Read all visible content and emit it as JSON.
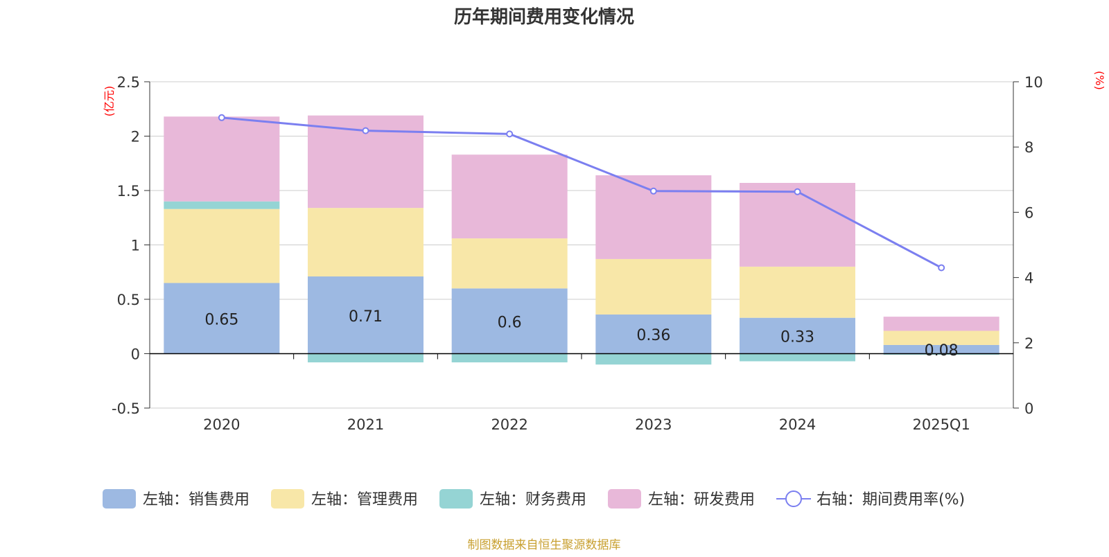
{
  "chart_data": {
    "type": "bar",
    "title": "历年期间费用变化情况",
    "left_unit": "(亿元)",
    "right_unit": "(%)",
    "categories": [
      "2020",
      "2021",
      "2022",
      "2023",
      "2024",
      "2025Q1"
    ],
    "y_left": {
      "min": -0.5,
      "max": 2.5,
      "ticks": [
        "-0.5",
        "0",
        "0.5",
        "1",
        "1.5",
        "2",
        "2.5"
      ]
    },
    "y_right": {
      "min": 0,
      "max": 10,
      "ticks": [
        "0",
        "2",
        "4",
        "6",
        "8",
        "10"
      ]
    },
    "grid": true,
    "series": [
      {
        "name": "左轴：销售费用",
        "type": "bar",
        "axis": "left",
        "color": "#9db9e2",
        "values": [
          0.65,
          0.71,
          0.6,
          0.36,
          0.33,
          0.08
        ],
        "labels": [
          "0.65",
          "0.71",
          "0.6",
          "0.36",
          "0.33",
          "0.08"
        ]
      },
      {
        "name": "左轴：管理费用",
        "type": "bar",
        "axis": "left",
        "color": "#f8e7a8",
        "values": [
          0.68,
          0.63,
          0.46,
          0.51,
          0.47,
          0.13
        ]
      },
      {
        "name": "左轴：财务费用",
        "type": "bar",
        "axis": "left",
        "color": "#95d4d4",
        "values": [
          0.07,
          -0.08,
          -0.08,
          -0.1,
          -0.07,
          -0.01
        ]
      },
      {
        "name": "左轴：研发费用",
        "type": "bar",
        "axis": "left",
        "color": "#e8b8d9",
        "values": [
          0.78,
          0.85,
          0.77,
          0.77,
          0.77,
          0.13
        ]
      },
      {
        "name": "右轴：期间费用率(%)",
        "type": "line",
        "axis": "right",
        "color": "#7b7ff0",
        "values": [
          8.9,
          8.5,
          8.4,
          6.65,
          6.63,
          4.3
        ]
      }
    ],
    "legend_position": "bottom"
  },
  "footer": {
    "source": "制图数据来自恒生聚源数据库"
  },
  "colors": {
    "title": "#333333",
    "unit": "#ff0000",
    "axis_text": "#333333",
    "grid": "#cccccc",
    "source": "#c8a030"
  }
}
